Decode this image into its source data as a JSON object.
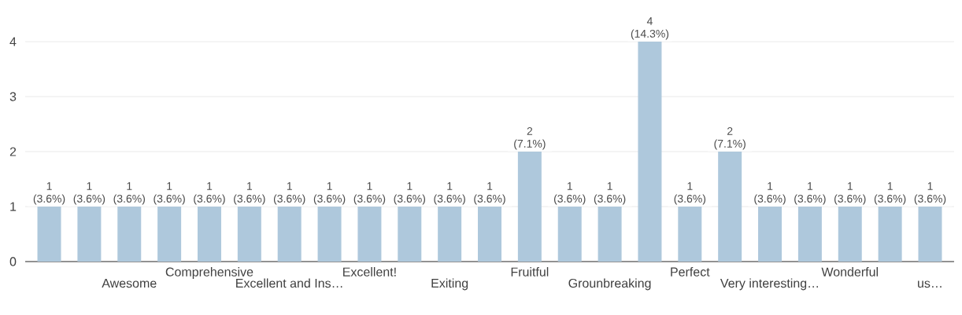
{
  "chart_data": {
    "type": "bar",
    "categories": [
      null,
      null,
      "Awesome",
      null,
      "Comprehensive",
      null,
      "Excellent and Ins…",
      null,
      "Excellent!",
      null,
      "Exiting",
      null,
      "Fruitful",
      null,
      "Grounbreaking",
      null,
      "Perfect",
      null,
      "Very interesting…",
      null,
      "Wonderful",
      null,
      "us…"
    ],
    "values": [
      1,
      1,
      1,
      1,
      1,
      1,
      1,
      1,
      1,
      1,
      1,
      1,
      2,
      1,
      1,
      4,
      1,
      2,
      1,
      1,
      1,
      1,
      1
    ],
    "value_labels": [
      "1 (3.6%)",
      "1 (3.6%)",
      "1 (3.6%)",
      "1 (3.6%)",
      "1 (3.6%)",
      "1 (3.6%)",
      "1 (3.6%)",
      "1 (3.6%)",
      "1 (3.6%)",
      "1 (3.6%)",
      "1 (3.6%)",
      "1 (3.6%)",
      "2 (7.1%)",
      "1 (3.6%)",
      "1 (3.6%)",
      "4 (14.3%)",
      "1 (3.6%)",
      "2 (7.1%)",
      "1 (3.6%)",
      "1 (3.6%)",
      "1 (3.6%)",
      "1 (3.6%)",
      "1 (3.6%)"
    ],
    "color": "#aec8dc",
    "ylim": [
      0,
      4
    ],
    "yticks": [
      0,
      1,
      2,
      3,
      4
    ],
    "grid": "y"
  }
}
